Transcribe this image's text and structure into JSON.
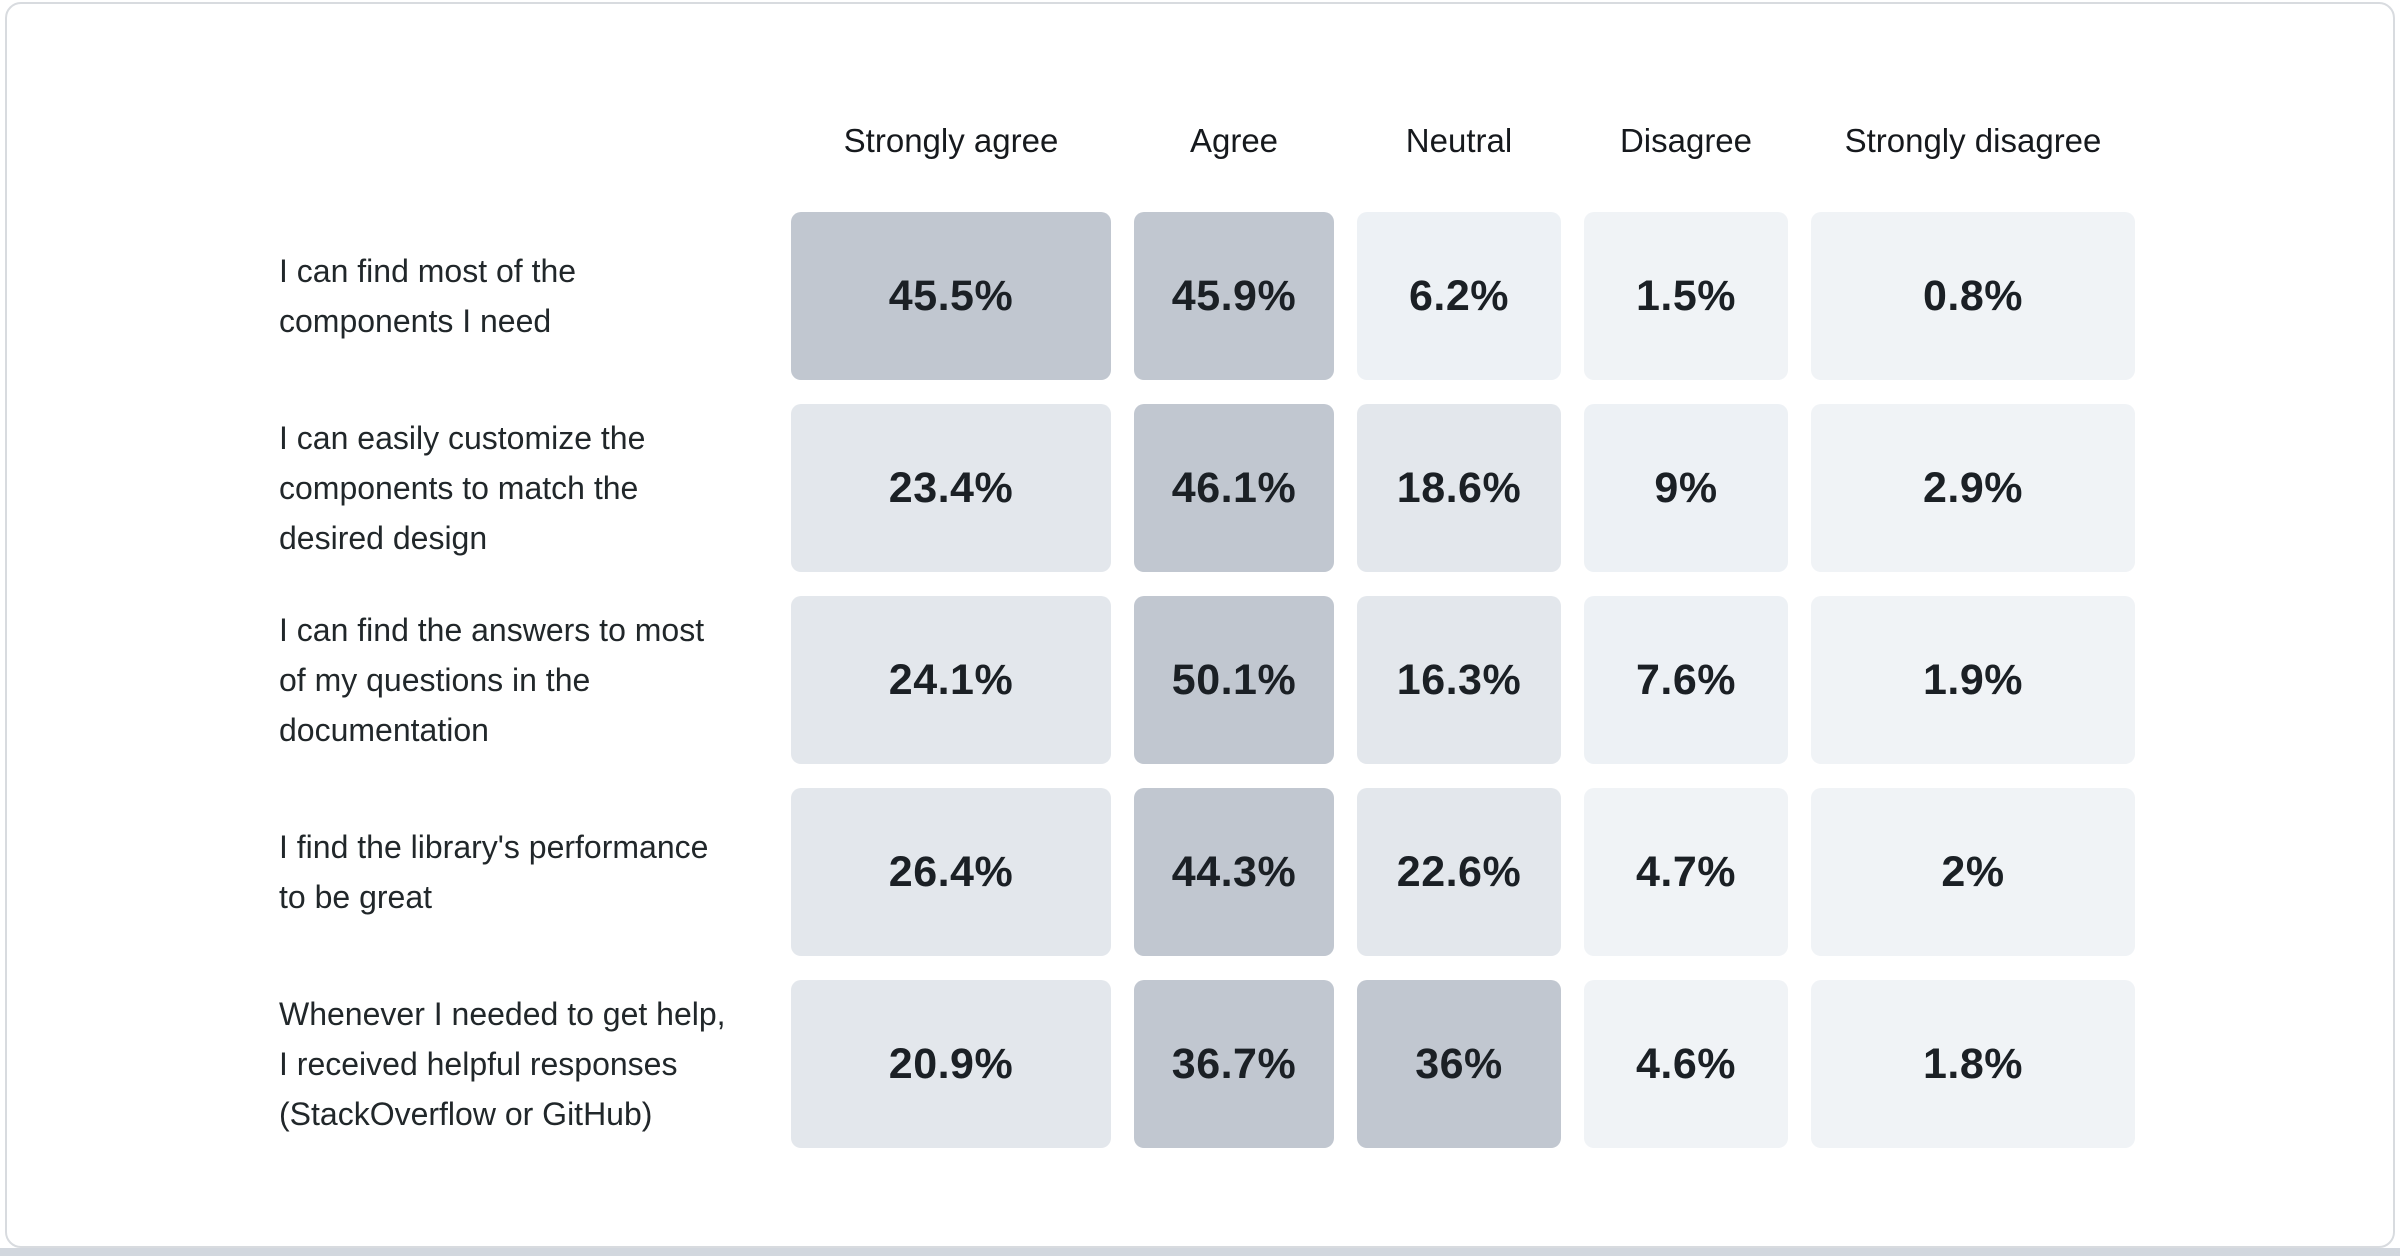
{
  "page": {
    "card_background": "#ffffff",
    "card_border_color": "#d8dbdf",
    "bottom_edge_color": "#d2d7de",
    "text_color": "#21272a"
  },
  "chart_data": {
    "type": "heatmap",
    "title": "",
    "unit": "percent",
    "legend_position": "none",
    "grid": false,
    "columns": [
      "Strongly agree",
      "Agree",
      "Neutral",
      "Disagree",
      "Strongly disagree"
    ],
    "rows": [
      {
        "label": "I can find most of the components I need",
        "values": [
          45.5,
          45.9,
          6.2,
          1.5,
          0.8
        ],
        "labels": [
          "45.5%",
          "45.9%",
          "6.2%",
          "1.5%",
          "0.8%"
        ]
      },
      {
        "label": "I can easily customize the components to match the desired design",
        "values": [
          23.4,
          46.1,
          18.6,
          9,
          2.9
        ],
        "labels": [
          "23.4%",
          "46.1%",
          "18.6%",
          "9%",
          "2.9%"
        ]
      },
      {
        "label": "I can find the answers to most of my questions in the documentation",
        "values": [
          24.1,
          50.1,
          16.3,
          7.6,
          1.9
        ],
        "labels": [
          "24.1%",
          "50.1%",
          "16.3%",
          "7.6%",
          "1.9%"
        ]
      },
      {
        "label": "I find the library's performance to be great",
        "values": [
          26.4,
          44.3,
          22.6,
          4.7,
          2
        ],
        "labels": [
          "26.4%",
          "44.3%",
          "22.6%",
          "4.7%",
          "2%"
        ]
      },
      {
        "label": "Whenever I needed to get help, I received helpful responses (StackOverflow or GitHub)",
        "values": [
          20.9,
          36.7,
          36,
          4.6,
          1.8
        ],
        "labels": [
          "20.9%",
          "36.7%",
          "36%",
          "4.6%",
          "1.8%"
        ]
      }
    ],
    "color_scale": [
      {
        "min": 30,
        "color": "#c1c7d0"
      },
      {
        "min": 15,
        "color": "#e3e7ec"
      },
      {
        "min": 5,
        "color": "#edf1f5"
      },
      {
        "min": 0,
        "color": "#f0f3f6"
      }
    ]
  }
}
